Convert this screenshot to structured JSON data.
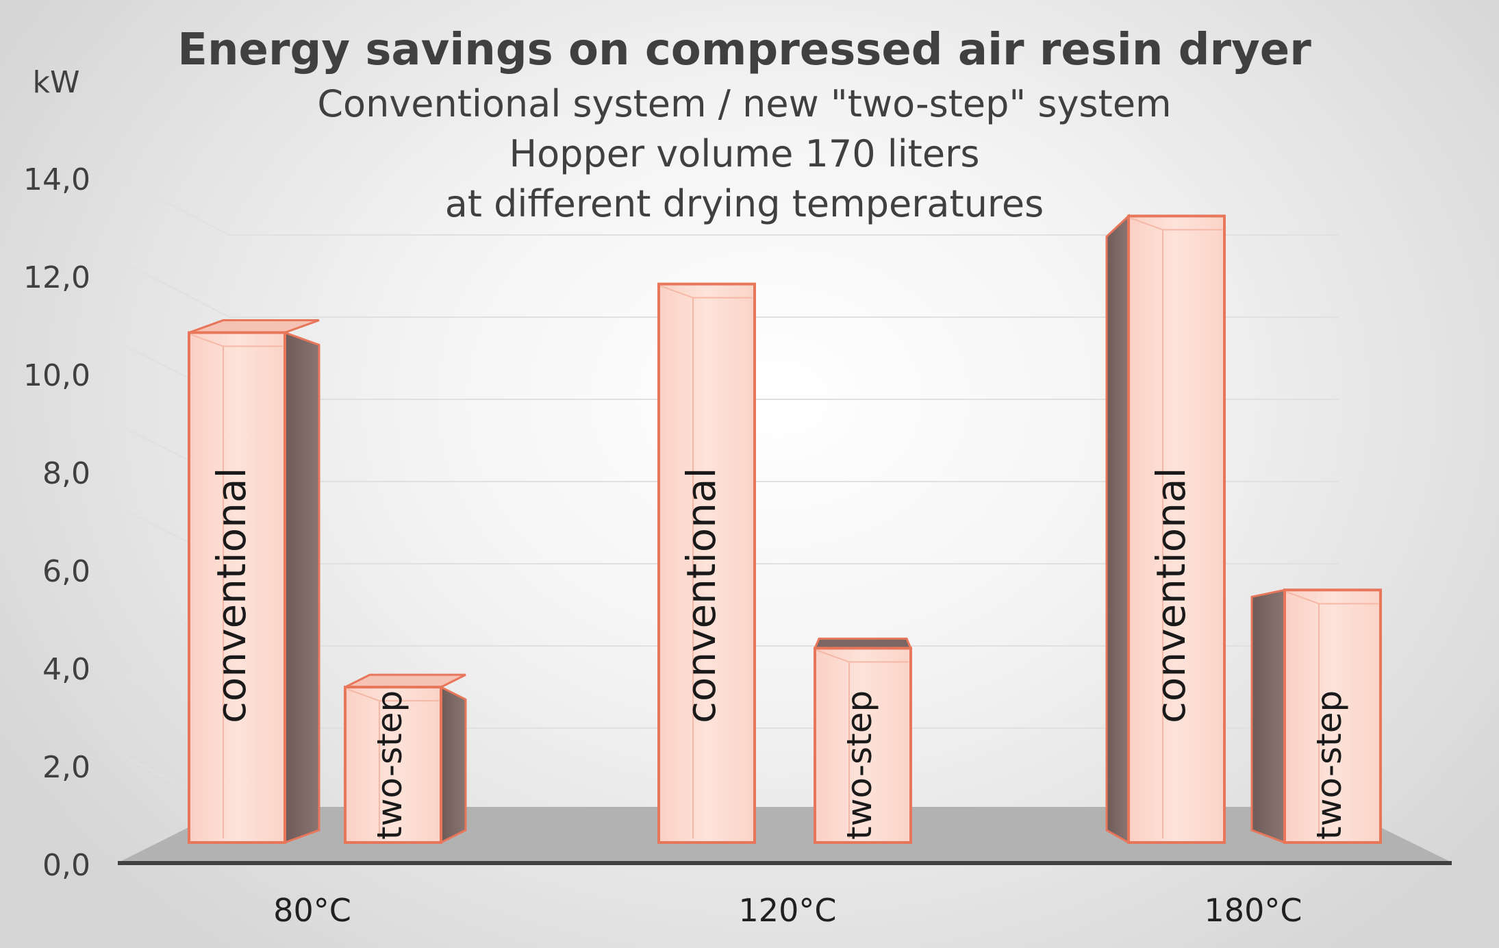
{
  "chart_data": {
    "type": "bar",
    "title": "Energy savings on compressed air resin dryer",
    "subtitle_lines": [
      "Conventional system / new \"two-step\" system",
      "Hopper volume 170 liters",
      "at different drying temperatures"
    ],
    "ylabel": "kW",
    "xlabel": "",
    "categories": [
      "80°C",
      "120°C",
      "180°C"
    ],
    "series": [
      {
        "name": "conventional",
        "values": [
          10.5,
          11.5,
          12.9
        ]
      },
      {
        "name": "two-step",
        "values": [
          3.2,
          4.0,
          5.2
        ]
      }
    ],
    "ylim": [
      0,
      14
    ],
    "yticks": [
      "0,0",
      "2,0",
      "4,0",
      "6,0",
      "8,0",
      "10,0",
      "12,0",
      "14,0"
    ],
    "grid": true,
    "legend": "none",
    "colors": {
      "bar_face": "#fbd6cc",
      "bar_edge": "#e8765a",
      "bar_side": "#7a6663",
      "floor": "#b2b2b2",
      "gridline": "#e0e0e0"
    }
  }
}
